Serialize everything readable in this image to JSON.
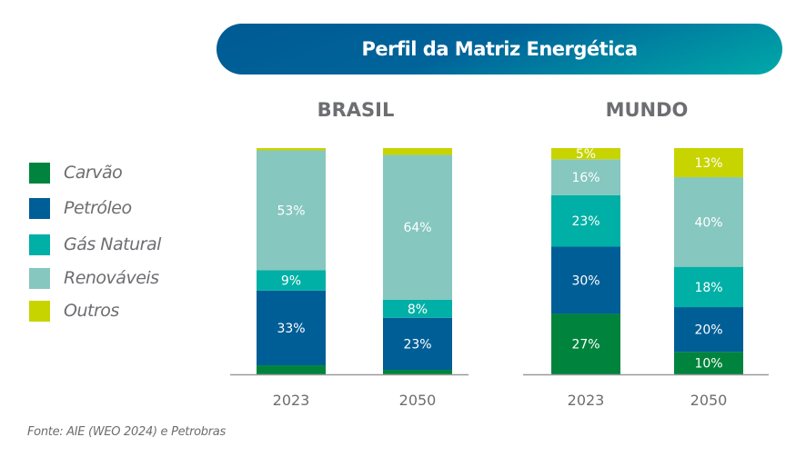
{
  "chart_data": {
    "type": "bar",
    "stacked": true,
    "title": "Perfil da Matriz Energética",
    "source": "Fonte: AIE (WEO 2024) e Petrobras",
    "legend_position": "left",
    "grid": false,
    "series_names": [
      "Carvão",
      "Petróleo",
      "Gás Natural",
      "Renováveis",
      "Outros"
    ],
    "colors": [
      "#00843d",
      "#005e96",
      "#00afa5",
      "#86c7bf",
      "#c8d400"
    ],
    "panels": [
      {
        "title": "BRASIL",
        "categories": [
          "2023",
          "2050"
        ],
        "bars": [
          {
            "values": [
              4,
              33,
              9,
              53,
              1
            ],
            "labels": [
              null,
              "33%",
              "9%",
              "53%",
              null
            ]
          },
          {
            "values": [
              2,
              23,
              8,
              64,
              3
            ],
            "labels": [
              null,
              "23%",
              "8%",
              "64%",
              null
            ]
          }
        ]
      },
      {
        "title": "MUNDO",
        "categories": [
          "2023",
          "2050"
        ],
        "bars": [
          {
            "values": [
              27,
              30,
              23,
              16,
              5
            ],
            "labels": [
              "27%",
              "30%",
              "23%",
              "16%",
              "5%"
            ]
          },
          {
            "values": [
              10,
              20,
              18,
              40,
              13
            ],
            "labels": [
              "10%",
              "20%",
              "18%",
              "40%",
              "13%"
            ]
          }
        ]
      }
    ]
  }
}
